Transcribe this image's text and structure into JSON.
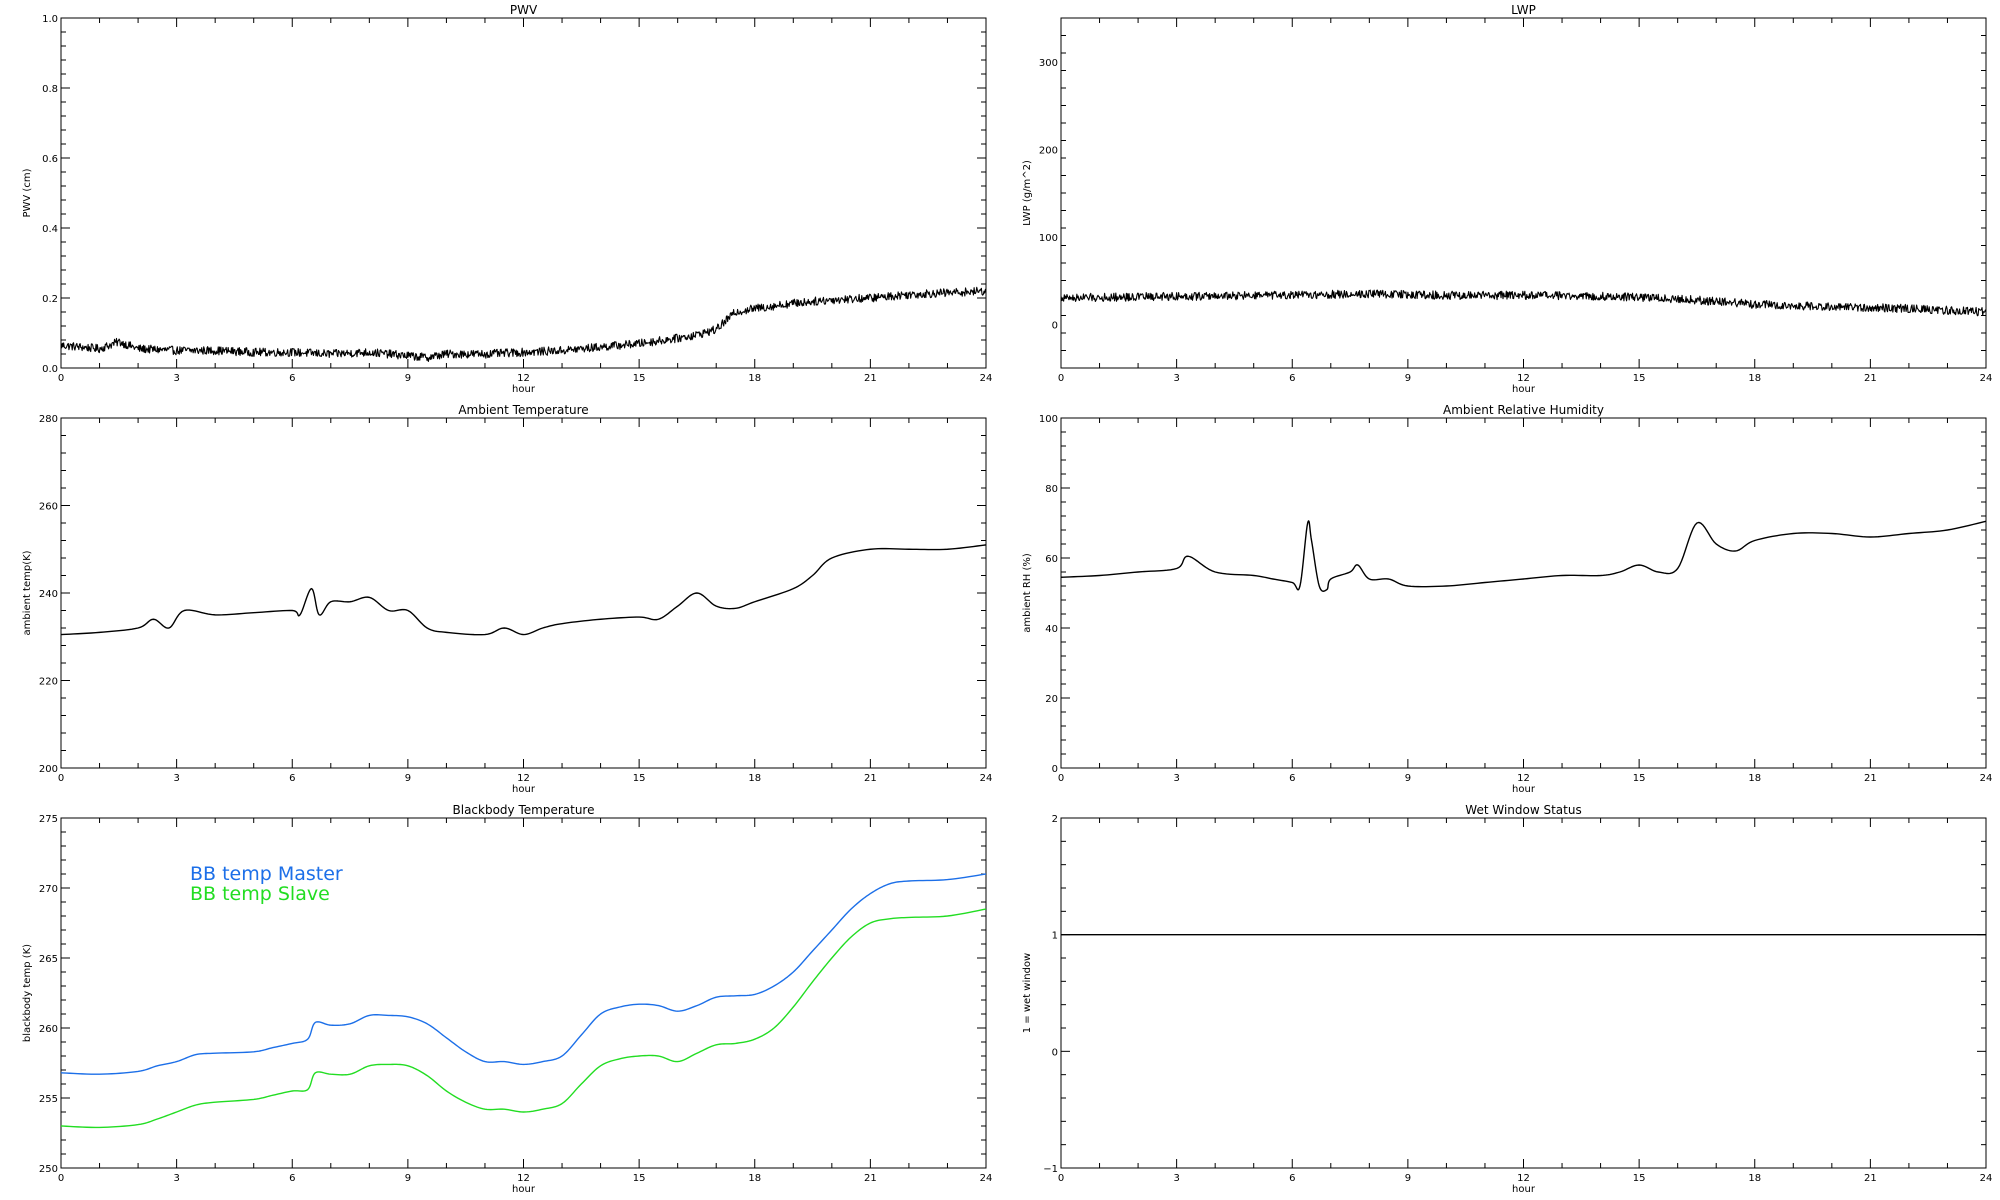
{
  "chart_data": [
    {
      "id": "pwv",
      "type": "line",
      "title": "PWV",
      "xlabel": "hour",
      "ylabel": "PWV (cm)",
      "xlim": [
        0,
        24
      ],
      "ylim": [
        0,
        1.0
      ],
      "xticks": [
        0,
        3,
        6,
        9,
        12,
        15,
        18,
        21,
        24
      ],
      "yticks": [
        0.0,
        0.2,
        0.4,
        0.6,
        0.8,
        1.0
      ],
      "ytick_labels": [
        "0.0",
        "0.2",
        "0.4",
        "0.6",
        "0.8",
        "1.0"
      ],
      "noisy": true,
      "series": [
        {
          "color": "#000000",
          "x": [
            0,
            1,
            1.5,
            2,
            3,
            4,
            5,
            6,
            7,
            8,
            9,
            9.5,
            10,
            11,
            12,
            13,
            14,
            15,
            16,
            16.5,
            17,
            17.5,
            18,
            19,
            20,
            21,
            22,
            23,
            24
          ],
          "y": [
            0.065,
            0.055,
            0.075,
            0.055,
            0.05,
            0.05,
            0.045,
            0.045,
            0.04,
            0.045,
            0.035,
            0.03,
            0.04,
            0.04,
            0.045,
            0.05,
            0.06,
            0.07,
            0.085,
            0.095,
            0.11,
            0.16,
            0.17,
            0.185,
            0.195,
            0.2,
            0.21,
            0.215,
            0.22
          ]
        }
      ]
    },
    {
      "id": "lwp",
      "type": "line",
      "title": "LWP",
      "xlabel": "hour",
      "ylabel": "LWP (g/m^2)",
      "xlim": [
        0,
        24
      ],
      "ylim": [
        -50,
        350
      ],
      "xticks": [
        0,
        3,
        6,
        9,
        12,
        15,
        18,
        21,
        24
      ],
      "yticks": [
        0,
        100,
        200,
        300
      ],
      "ytick_labels": [
        "0",
        "100",
        "200",
        "300"
      ],
      "noisy": true,
      "series": [
        {
          "color": "#000000",
          "x": [
            0,
            3,
            6,
            8,
            10,
            12,
            14,
            15,
            16,
            17,
            18,
            19,
            20,
            21,
            22,
            23,
            24
          ],
          "y": [
            30,
            32,
            33,
            35,
            33,
            33,
            32,
            31,
            29,
            26,
            23,
            21,
            20,
            19,
            18,
            16,
            14
          ]
        }
      ]
    },
    {
      "id": "ambient_temperature",
      "type": "line",
      "title": "Ambient Temperature",
      "xlabel": "hour",
      "ylabel": "ambient temp(K)",
      "xlim": [
        0,
        24
      ],
      "ylim": [
        200,
        280
      ],
      "xticks": [
        0,
        3,
        6,
        9,
        12,
        15,
        18,
        21,
        24
      ],
      "yticks": [
        200,
        220,
        240,
        260,
        280
      ],
      "ytick_labels": [
        "200",
        "220",
        "240",
        "260",
        "280"
      ],
      "noisy": false,
      "series": [
        {
          "color": "#000000",
          "x": [
            0,
            1,
            2,
            2.4,
            2.8,
            3.2,
            4,
            5,
            6,
            6.2,
            6.5,
            6.7,
            7,
            7.5,
            8,
            8.5,
            9,
            9.5,
            10,
            11,
            11.5,
            12,
            12.5,
            13,
            14,
            15,
            15.5,
            16,
            16.5,
            17,
            17.5,
            18,
            19,
            19.5,
            20,
            21,
            22,
            23,
            24
          ],
          "y": [
            230.5,
            231,
            232,
            234,
            232,
            236,
            235,
            235.5,
            236,
            235,
            241,
            235,
            238,
            238,
            239,
            236,
            236,
            232,
            231,
            230.5,
            232,
            230.5,
            232,
            233,
            234,
            234.5,
            234,
            237,
            240,
            237,
            236.5,
            238,
            241,
            244,
            248,
            250,
            250,
            250,
            251
          ]
        }
      ]
    },
    {
      "id": "ambient_relative_humidity",
      "type": "line",
      "title": "Ambient Relative Humidity",
      "xlabel": "hour",
      "ylabel": "ambient RH (%)",
      "xlim": [
        0,
        24
      ],
      "ylim": [
        0,
        100
      ],
      "xticks": [
        0,
        3,
        6,
        9,
        12,
        15,
        18,
        21,
        24
      ],
      "yticks": [
        0,
        20,
        40,
        60,
        80,
        100
      ],
      "ytick_labels": [
        "0",
        "20",
        "40",
        "60",
        "80",
        "100"
      ],
      "noisy": false,
      "series": [
        {
          "color": "#000000",
          "x": [
            0,
            1,
            2,
            3,
            3.3,
            4,
            5,
            5.5,
            6,
            6.2,
            6.4,
            6.5,
            6.7,
            6.9,
            7,
            7.5,
            7.7,
            8,
            8.5,
            9,
            10,
            11,
            12,
            13,
            14,
            14.5,
            15,
            15.5,
            16,
            16.5,
            17,
            17.5,
            18,
            19,
            20,
            21,
            22,
            23,
            24
          ],
          "y": [
            54.5,
            55,
            56,
            57,
            60.5,
            56,
            55,
            54,
            53,
            52,
            70,
            65,
            52,
            51,
            54,
            56,
            58,
            54,
            54,
            52,
            52,
            53,
            54,
            55,
            55,
            56,
            58,
            56,
            57,
            70,
            64,
            62,
            65,
            67,
            67,
            66,
            67,
            68,
            70.5
          ]
        }
      ]
    },
    {
      "id": "blackbody_temperature",
      "type": "line",
      "title": "Blackbody Temperature",
      "xlabel": "hour",
      "ylabel": "blackbody temp (K)",
      "xlim": [
        0,
        24
      ],
      "ylim": [
        250,
        275
      ],
      "xticks": [
        0,
        3,
        6,
        9,
        12,
        15,
        18,
        21,
        24
      ],
      "yticks": [
        250,
        255,
        260,
        265,
        270,
        275
      ],
      "ytick_labels": [
        "250",
        "255",
        "260",
        "265",
        "270",
        "275"
      ],
      "noisy": false,
      "legend": [
        "BB temp Master",
        "BB temp Slave"
      ],
      "series": [
        {
          "name": "BB temp Master",
          "color": "#1c6fe8",
          "x": [
            0,
            1,
            2,
            2.5,
            3,
            3.5,
            4,
            5,
            5.5,
            6,
            6.4,
            6.6,
            7,
            7.5,
            8,
            8.5,
            9,
            9.5,
            10,
            10.5,
            11,
            11.5,
            12,
            12.5,
            13,
            13.5,
            14,
            14.5,
            15,
            15.5,
            16,
            16.5,
            17,
            17.5,
            18,
            18.5,
            19,
            19.5,
            20,
            20.5,
            21,
            21.5,
            22,
            23,
            24
          ],
          "y": [
            256.8,
            256.7,
            256.9,
            257.3,
            257.6,
            258.1,
            258.2,
            258.3,
            258.6,
            258.9,
            259.2,
            260.4,
            260.2,
            260.3,
            260.9,
            260.9,
            260.8,
            260.3,
            259.3,
            258.3,
            257.6,
            257.6,
            257.4,
            257.6,
            258.0,
            259.5,
            261.0,
            261.5,
            261.7,
            261.6,
            261.2,
            261.6,
            262.2,
            262.3,
            262.4,
            263.0,
            264.0,
            265.5,
            267.0,
            268.5,
            269.6,
            270.3,
            270.5,
            270.6,
            271.0
          ]
        },
        {
          "name": "BB temp Slave",
          "color": "#22dd22",
          "x": [
            0,
            1,
            2,
            2.5,
            3,
            3.5,
            4,
            5,
            5.5,
            6,
            6.4,
            6.6,
            7,
            7.5,
            8,
            8.5,
            9,
            9.5,
            10,
            10.5,
            11,
            11.5,
            12,
            12.5,
            13,
            13.5,
            14,
            14.5,
            15,
            15.5,
            16,
            16.5,
            17,
            17.5,
            18,
            18.5,
            19,
            19.5,
            20,
            20.5,
            21,
            21.5,
            22,
            23,
            24
          ],
          "y": [
            253.0,
            252.9,
            253.1,
            253.5,
            254.0,
            254.5,
            254.7,
            254.9,
            255.2,
            255.5,
            255.6,
            256.8,
            256.7,
            256.7,
            257.3,
            257.4,
            257.3,
            256.6,
            255.5,
            254.7,
            254.2,
            254.2,
            254.0,
            254.2,
            254.6,
            256.0,
            257.3,
            257.8,
            258.0,
            258.0,
            257.6,
            258.2,
            258.8,
            258.9,
            259.2,
            260.0,
            261.5,
            263.3,
            265.0,
            266.5,
            267.5,
            267.8,
            267.9,
            268.0,
            268.5
          ]
        }
      ]
    },
    {
      "id": "wet_window_status",
      "type": "line",
      "title": "Wet Window Status",
      "xlabel": "hour",
      "ylabel": "1 = wet window",
      "xlim": [
        0,
        24
      ],
      "ylim": [
        -1,
        2
      ],
      "xticks": [
        0,
        3,
        6,
        9,
        12,
        15,
        18,
        21,
        24
      ],
      "yticks": [
        -1,
        0,
        1,
        2
      ],
      "ytick_labels": [
        "−1",
        "0",
        "1",
        "2"
      ],
      "noisy": false,
      "series": [
        {
          "color": "#000000",
          "x": [
            0,
            24
          ],
          "y": [
            1,
            1
          ]
        }
      ]
    }
  ]
}
